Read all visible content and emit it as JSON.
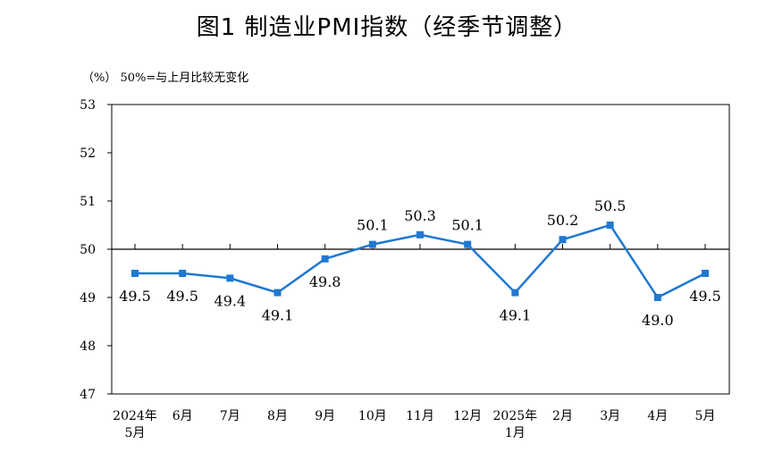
{
  "chart_data": {
    "type": "line",
    "title": "图1  制造业PMI指数（经季节调整）",
    "subtitle": "（%）  50%=与上月比较无变化",
    "categories": [
      [
        "2024年",
        "5月"
      ],
      [
        "6月"
      ],
      [
        "7月"
      ],
      [
        "8月"
      ],
      [
        "9月"
      ],
      [
        "10月"
      ],
      [
        "11月"
      ],
      [
        "12月"
      ],
      [
        "2025年",
        "1月"
      ],
      [
        "2月"
      ],
      [
        "3月"
      ],
      [
        "4月"
      ],
      [
        "5月"
      ]
    ],
    "values": [
      49.5,
      49.5,
      49.4,
      49.1,
      49.8,
      50.1,
      50.3,
      50.1,
      49.1,
      50.2,
      50.5,
      49.0,
      49.5
    ],
    "value_labels": [
      "49.5",
      "49.5",
      "49.4",
      "49.1",
      "49.8",
      "50.1",
      "50.3",
      "50.1",
      "49.1",
      "50.2",
      "50.5",
      "49.0",
      "49.5"
    ],
    "ylim": [
      47,
      53
    ],
    "yticks": [
      "47",
      "48",
      "49",
      "50",
      "51",
      "52",
      "53"
    ],
    "reference_line": 50,
    "grid": false,
    "line_color": "#1f78d1",
    "reference_color": "#000000"
  }
}
